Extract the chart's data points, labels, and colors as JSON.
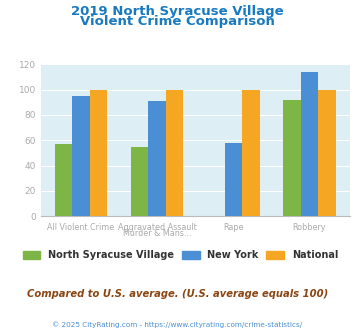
{
  "title_line1": "2019 North Syracuse Village",
  "title_line2": "Violent Crime Comparison",
  "title_color": "#1a7abf",
  "cat_line1": [
    "All Violent Crime",
    "Aggravated Assault",
    "Rape",
    "Robbery"
  ],
  "cat_line2": [
    "",
    "Murder & Mans...",
    "",
    ""
  ],
  "series": {
    "North Syracuse Village": [
      57,
      55,
      0,
      92
    ],
    "New York": [
      95,
      91,
      58,
      114
    ],
    "National": [
      100,
      100,
      100,
      100
    ]
  },
  "colors": {
    "North Syracuse Village": "#7db646",
    "New York": "#4a8fd4",
    "National": "#f5a623"
  },
  "ylim": [
    0,
    120
  ],
  "yticks": [
    0,
    20,
    40,
    60,
    80,
    100,
    120
  ],
  "legend_order": [
    "North Syracuse Village",
    "New York",
    "National"
  ],
  "note_text": "Compared to U.S. average. (U.S. average equals 100)",
  "note_color": "#8b4513",
  "footer_text": "© 2025 CityRating.com - https://www.cityrating.com/crime-statistics/",
  "footer_color": "#4a8fd4",
  "bg_color": "#ddeef5",
  "fig_bg": "#ffffff",
  "bar_width": 0.23
}
